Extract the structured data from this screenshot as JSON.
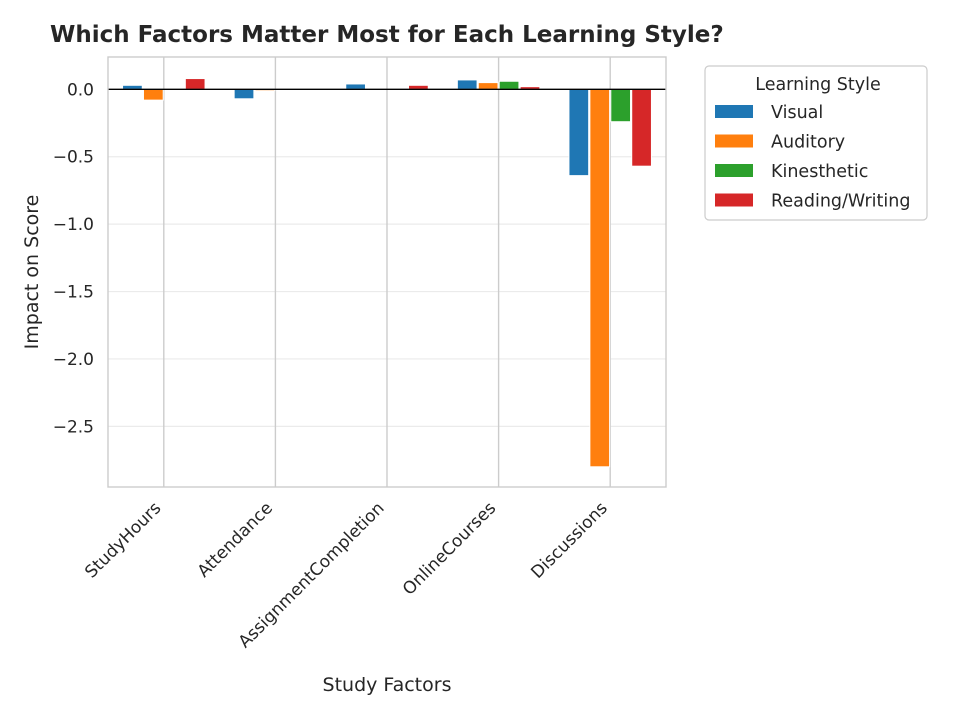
{
  "chart_data": {
    "type": "bar",
    "title": "Which Factors Matter Most for Each Learning Style?",
    "xlabel": "Study Factors",
    "ylabel": "Impact on Score",
    "categories": [
      "StudyHours",
      "Attendance",
      "AssignmentCompletion",
      "OnlineCourses",
      "Discussions"
    ],
    "series": [
      {
        "name": "Visual",
        "color": "#1f77b4",
        "values": [
          0.03,
          -0.07,
          0.04,
          0.07,
          -0.64
        ]
      },
      {
        "name": "Auditory",
        "color": "#ff7f0e",
        "values": [
          -0.08,
          -0.01,
          0.0,
          0.05,
          -2.8
        ]
      },
      {
        "name": "Kinesthetic",
        "color": "#2ca02c",
        "values": [
          0.0,
          0.0,
          0.0,
          0.06,
          -0.24
        ]
      },
      {
        "name": "Reading/Writing",
        "color": "#d62728",
        "values": [
          0.08,
          0.0,
          0.03,
          0.02,
          -0.57
        ]
      }
    ],
    "ylim": [
      -2.95,
      0.24
    ],
    "yticks": [
      0.0,
      -0.5,
      -1.0,
      -1.5,
      -2.0,
      -2.5
    ],
    "ytick_labels": [
      "0.0",
      "−0.5",
      "−1.0",
      "−1.5",
      "−2.0",
      "−2.5"
    ],
    "grid": true,
    "legend": {
      "title": "Learning Style",
      "placement": "outside-upper-right"
    }
  }
}
